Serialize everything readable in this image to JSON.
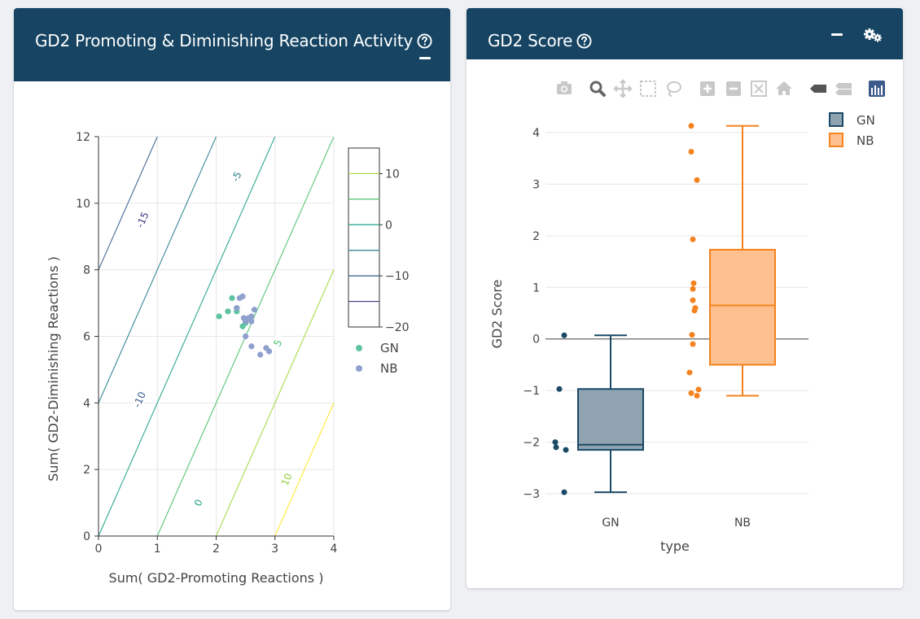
{
  "panels": {
    "activity": {
      "title": "GD2 Promoting & Diminishing Reaction Activity",
      "help_icon": "question-circle-icon",
      "collapse_icon": "minus-icon"
    },
    "score": {
      "title": "GD2 Score",
      "help_icon": "question-circle-icon",
      "collapse_icon": "minus-icon",
      "settings_icon": "gears-icon",
      "modebar_icons": [
        "camera-icon",
        "zoom-icon",
        "pan-icon",
        "box-select-icon",
        "lasso-select-icon",
        "zoom-in-icon",
        "zoom-out-icon",
        "autoscale-icon",
        "reset-axes-icon",
        "hover-closest-icon",
        "hover-compare-icon",
        "plotly-logo-icon"
      ]
    }
  },
  "colors": {
    "header": "#164462",
    "GN_point": "#5ec4a1",
    "NB_point": "#8fa0cf",
    "GN_box": "#1a4a66",
    "NB_box": "#f5821f"
  },
  "chart_data": [
    {
      "type": "scatter",
      "title": "",
      "xlabel": "Sum( GD2-Promoting Reactions )",
      "ylabel": "Sum( GD2-Diminishing Reactions )",
      "xlim": [
        0,
        4
      ],
      "ylim": [
        0,
        12
      ],
      "xticks": [
        0,
        1,
        2,
        3,
        4
      ],
      "yticks": [
        0,
        2,
        4,
        6,
        8,
        10,
        12
      ],
      "grid": true,
      "contour": {
        "function": "5*x - 1.25*y",
        "levels": [
          -20,
          -15,
          -10,
          -5,
          0,
          5,
          10,
          15
        ],
        "labels": [
          "-15",
          "-10",
          "-5",
          "0",
          "5",
          "10"
        ],
        "colorbar_ticks": [
          "10",
          "0",
          "−10",
          "−20"
        ]
      },
      "legend_position": "right",
      "series": [
        {
          "name": "GN",
          "points": [
            [
              2.05,
              6.6
            ],
            [
              2.2,
              6.75
            ],
            [
              2.27,
              7.15
            ],
            [
              2.35,
              6.85
            ],
            [
              2.35,
              6.75
            ],
            [
              2.45,
              6.3
            ],
            [
              2.5,
              6.4
            ]
          ]
        },
        {
          "name": "NB",
          "points": [
            [
              2.4,
              7.15
            ],
            [
              2.45,
              7.2
            ],
            [
              2.47,
              6.55
            ],
            [
              2.5,
              6.45
            ],
            [
              2.55,
              6.55
            ],
            [
              2.6,
              6.6
            ],
            [
              2.65,
              6.8
            ],
            [
              2.6,
              6.45
            ],
            [
              2.5,
              6.0
            ],
            [
              2.6,
              5.7
            ],
            [
              2.75,
              5.45
            ],
            [
              2.85,
              5.65
            ],
            [
              2.9,
              5.55
            ],
            [
              2.35,
              6.85
            ]
          ]
        }
      ]
    },
    {
      "type": "box",
      "title": "",
      "xlabel": "type",
      "ylabel": "GD2 Score",
      "ylim": [
        -3.2,
        4.3
      ],
      "yticks": [
        "−3",
        "−2",
        "−1",
        "0",
        "1",
        "2",
        "3",
        "4"
      ],
      "categories": [
        "GN",
        "NB"
      ],
      "legend_position": "top-right",
      "series": [
        {
          "name": "GN",
          "q1": -2.15,
          "median": -2.05,
          "q3": -0.97,
          "lower_fence": -2.97,
          "upper_fence": 0.07,
          "points": [
            0.07,
            -0.97,
            -2.0,
            -2.1,
            -2.15,
            -2.97
          ]
        },
        {
          "name": "NB",
          "q1": -0.5,
          "median": 0.65,
          "q3": 1.73,
          "lower_fence": -1.1,
          "upper_fence": 4.13,
          "points": [
            4.13,
            3.63,
            3.08,
            1.93,
            1.08,
            0.97,
            0.75,
            0.6,
            0.55,
            0.08,
            -0.1,
            -0.65,
            -0.98,
            -1.05,
            -1.1
          ]
        }
      ]
    }
  ]
}
